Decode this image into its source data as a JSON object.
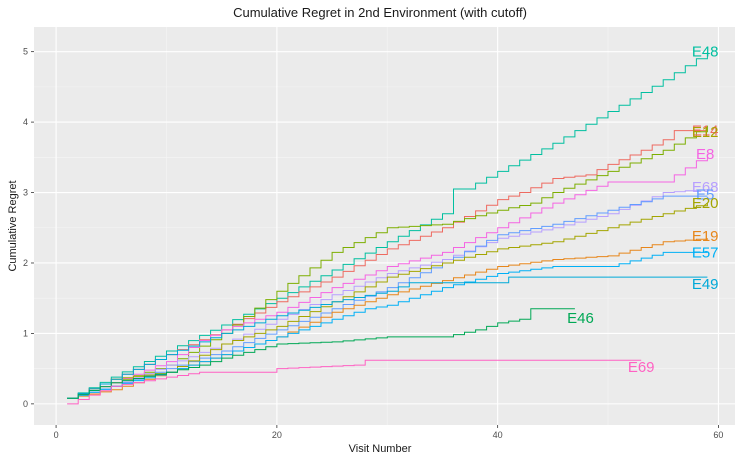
{
  "chart_data": {
    "type": "line",
    "title": "Cumulative Regret in 2nd Environment (with cutoff)",
    "xlabel": "Visit Number",
    "ylabel": "Cumulative Regret",
    "xlim": [
      -2,
      61.5
    ],
    "ylim": [
      -0.3,
      5.35
    ],
    "xticks": [
      0,
      20,
      40,
      60
    ],
    "yticks": [
      0,
      1,
      2,
      3,
      4,
      5
    ],
    "grid": true,
    "legend": "none (direct labels at line ends)",
    "series": [
      {
        "name": "E48",
        "color": "#00BFA0",
        "points": [
          [
            1,
            0.08
          ],
          [
            5,
            0.38
          ],
          [
            10,
            0.75
          ],
          [
            15,
            1.12
          ],
          [
            20,
            1.5
          ],
          [
            25,
            1.9
          ],
          [
            30,
            2.3
          ],
          [
            35,
            2.7
          ],
          [
            36,
            3.05
          ],
          [
            37,
            3.05
          ],
          [
            40,
            3.3
          ],
          [
            45,
            3.7
          ],
          [
            50,
            4.15
          ],
          [
            55,
            4.6
          ],
          [
            59,
            5.0
          ]
        ]
      },
      {
        "name": "E14",
        "color": "#EE6A60",
        "points": [
          [
            1,
            0.08
          ],
          [
            5,
            0.35
          ],
          [
            10,
            0.7
          ],
          [
            15,
            1.05
          ],
          [
            20,
            1.45
          ],
          [
            25,
            1.8
          ],
          [
            30,
            2.2
          ],
          [
            35,
            2.5
          ],
          [
            40,
            2.9
          ],
          [
            42,
            3.0
          ],
          [
            45,
            3.2
          ],
          [
            48,
            3.25
          ],
          [
            50,
            3.4
          ],
          [
            53,
            3.6
          ],
          [
            55,
            3.75
          ],
          [
            56,
            3.88
          ],
          [
            59,
            3.88
          ]
        ]
      },
      {
        "name": "E12",
        "color": "#7CAE00",
        "points": [
          [
            1,
            0.08
          ],
          [
            5,
            0.3
          ],
          [
            10,
            0.55
          ],
          [
            15,
            1.0
          ],
          [
            20,
            1.6
          ],
          [
            25,
            2.15
          ],
          [
            30,
            2.5
          ],
          [
            35,
            2.55
          ],
          [
            40,
            2.75
          ],
          [
            43,
            2.85
          ],
          [
            45,
            3.0
          ],
          [
            50,
            3.3
          ],
          [
            55,
            3.6
          ],
          [
            59,
            3.95
          ]
        ]
      },
      {
        "name": "E8",
        "color": "#F564E3",
        "points": [
          [
            1,
            0.08
          ],
          [
            5,
            0.3
          ],
          [
            10,
            0.6
          ],
          [
            13,
            0.9
          ],
          [
            15,
            1.05
          ],
          [
            20,
            1.3
          ],
          [
            25,
            1.65
          ],
          [
            30,
            1.95
          ],
          [
            35,
            2.15
          ],
          [
            40,
            2.5
          ],
          [
            45,
            2.85
          ],
          [
            50,
            3.15
          ],
          [
            55,
            3.15
          ],
          [
            59,
            3.55
          ]
        ]
      },
      {
        "name": "E68",
        "color": "#B79FFF",
        "points": [
          [
            1,
            0.08
          ],
          [
            5,
            0.25
          ],
          [
            10,
            0.55
          ],
          [
            15,
            0.85
          ],
          [
            20,
            1.2
          ],
          [
            25,
            1.55
          ],
          [
            30,
            1.85
          ],
          [
            35,
            2.05
          ],
          [
            40,
            2.35
          ],
          [
            45,
            2.5
          ],
          [
            50,
            2.7
          ],
          [
            55,
            3.0
          ],
          [
            59,
            3.05
          ]
        ]
      },
      {
        "name": "E5",
        "color": "#619CFF",
        "points": [
          [
            1,
            0.08
          ],
          [
            5,
            0.25
          ],
          [
            10,
            0.5
          ],
          [
            15,
            0.75
          ],
          [
            20,
            1.05
          ],
          [
            25,
            1.35
          ],
          [
            30,
            1.65
          ],
          [
            35,
            2.0
          ],
          [
            40,
            2.4
          ],
          [
            45,
            2.55
          ],
          [
            50,
            2.75
          ],
          [
            55,
            2.95
          ],
          [
            59,
            2.95
          ]
        ]
      },
      {
        "name": "E20",
        "color": "#A3A500",
        "points": [
          [
            1,
            0.08
          ],
          [
            5,
            0.35
          ],
          [
            10,
            0.45
          ],
          [
            15,
            0.85
          ],
          [
            20,
            1.1
          ],
          [
            25,
            1.45
          ],
          [
            30,
            1.8
          ],
          [
            35,
            2.0
          ],
          [
            40,
            2.2
          ],
          [
            45,
            2.3
          ],
          [
            50,
            2.5
          ],
          [
            55,
            2.7
          ],
          [
            59,
            2.85
          ]
        ]
      },
      {
        "name": "E19",
        "color": "#E7861B",
        "points": [
          [
            1,
            0.08
          ],
          [
            5,
            0.2
          ],
          [
            10,
            0.45
          ],
          [
            15,
            0.7
          ],
          [
            20,
            0.95
          ],
          [
            25,
            1.3
          ],
          [
            30,
            1.55
          ],
          [
            35,
            1.75
          ],
          [
            40,
            1.95
          ],
          [
            45,
            2.05
          ],
          [
            50,
            2.1
          ],
          [
            55,
            2.3
          ],
          [
            59,
            2.35
          ]
        ]
      },
      {
        "name": "E57",
        "color": "#00B0F6",
        "points": [
          [
            1,
            0.08
          ],
          [
            5,
            0.25
          ],
          [
            10,
            0.45
          ],
          [
            15,
            0.7
          ],
          [
            20,
            0.95
          ],
          [
            25,
            1.2
          ],
          [
            28,
            1.35
          ],
          [
            30,
            1.4
          ],
          [
            35,
            1.65
          ],
          [
            40,
            1.85
          ],
          [
            45,
            1.95
          ],
          [
            50,
            1.95
          ],
          [
            55,
            2.15
          ],
          [
            59,
            2.15
          ]
        ]
      },
      {
        "name": "E49",
        "color": "#00A9D8",
        "points": [
          [
            1,
            0.08
          ],
          [
            5,
            0.35
          ],
          [
            10,
            0.7
          ],
          [
            15,
            1.0
          ],
          [
            20,
            1.25
          ],
          [
            25,
            1.45
          ],
          [
            30,
            1.6
          ],
          [
            32,
            1.72
          ],
          [
            40,
            1.72
          ],
          [
            41,
            1.8
          ],
          [
            59,
            1.8
          ]
        ]
      },
      {
        "name": "E46",
        "color": "#00A855",
        "points": [
          [
            1,
            0.08
          ],
          [
            5,
            0.3
          ],
          [
            10,
            0.45
          ],
          [
            13,
            0.55
          ],
          [
            15,
            0.65
          ],
          [
            20,
            0.85
          ],
          [
            25,
            0.88
          ],
          [
            30,
            0.95
          ],
          [
            35,
            0.95
          ],
          [
            38,
            1.05
          ],
          [
            40,
            1.15
          ],
          [
            42,
            1.2
          ],
          [
            43,
            1.35
          ],
          [
            47,
            1.35
          ]
        ]
      },
      {
        "name": "E69",
        "color": "#FF61C3",
        "points": [
          [
            1,
            0.0
          ],
          [
            5,
            0.25
          ],
          [
            10,
            0.38
          ],
          [
            13,
            0.45
          ],
          [
            19,
            0.45
          ],
          [
            20,
            0.5
          ],
          [
            27,
            0.55
          ],
          [
            28,
            0.62
          ],
          [
            53,
            0.62
          ]
        ]
      }
    ],
    "labels": [
      {
        "text": "E48",
        "x": 58.8,
        "y": 5.0,
        "color": "#00BFA0"
      },
      {
        "text": "E14",
        "x": 58.8,
        "y": 3.88,
        "color": "#EE6A60"
      },
      {
        "text": "E12",
        "x": 58.8,
        "y": 3.86,
        "color": "#A9A100"
      },
      {
        "text": "E8",
        "x": 58.8,
        "y": 3.55,
        "color": "#F564E3"
      },
      {
        "text": "E68",
        "x": 58.8,
        "y": 3.08,
        "color": "#B79FFF"
      },
      {
        "text": "E5",
        "x": 58.8,
        "y": 2.97,
        "color": "#619CFF"
      },
      {
        "text": "E20",
        "x": 58.8,
        "y": 2.85,
        "color": "#A3A500"
      },
      {
        "text": "E19",
        "x": 58.8,
        "y": 2.38,
        "color": "#E7861B"
      },
      {
        "text": "E57",
        "x": 58.8,
        "y": 2.15,
        "color": "#00B0F6"
      },
      {
        "text": "E49",
        "x": 58.8,
        "y": 1.7,
        "color": "#00A9D8"
      },
      {
        "text": "E46",
        "x": 47.5,
        "y": 1.22,
        "color": "#00A855"
      },
      {
        "text": "E69",
        "x": 53.0,
        "y": 0.52,
        "color": "#FF61C3"
      }
    ]
  }
}
